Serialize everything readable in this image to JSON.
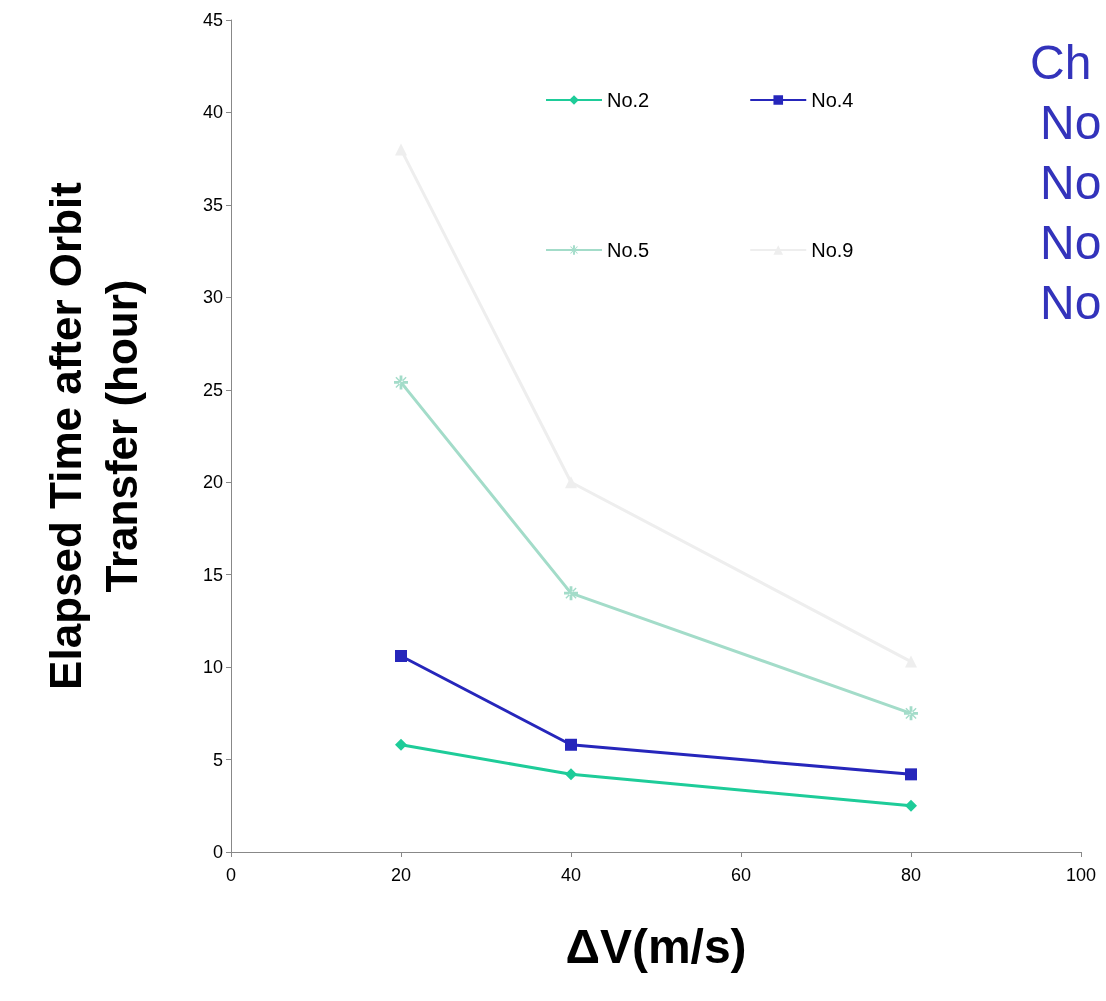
{
  "chart_data": {
    "type": "line",
    "xlabel": "ΔV(m/s)",
    "ylabel": "Elapsed Time after Orbit Transfer (hour)",
    "x": [
      20,
      40,
      80
    ],
    "series": [
      {
        "name": "No.2",
        "color": "#1ecc99",
        "marker": "diamond",
        "values": [
          5.8,
          4.2,
          2.5
        ]
      },
      {
        "name": "No.4",
        "color": "#2626bb",
        "marker": "square",
        "values": [
          10.6,
          5.8,
          4.2
        ]
      },
      {
        "name": "No.5",
        "color": "#a3dcc9",
        "marker": "cross",
        "values": [
          25.4,
          14.0,
          7.5
        ]
      },
      {
        "name": "No.9",
        "color": "#eeeeee",
        "marker": "triangle",
        "values": [
          38,
          20.0,
          10.3
        ]
      }
    ],
    "xlim": [
      0,
      100
    ],
    "xticks": [
      0,
      20,
      40,
      60,
      80,
      100
    ],
    "ylim": [
      0,
      45
    ],
    "yticks": [
      0,
      5,
      10,
      15,
      20,
      25,
      30,
      35,
      40,
      45
    ],
    "grid": false,
    "legend": "top",
    "line_style": "solid",
    "annotations": [
      "Ch",
      "No",
      "No",
      "No",
      "No"
    ]
  }
}
